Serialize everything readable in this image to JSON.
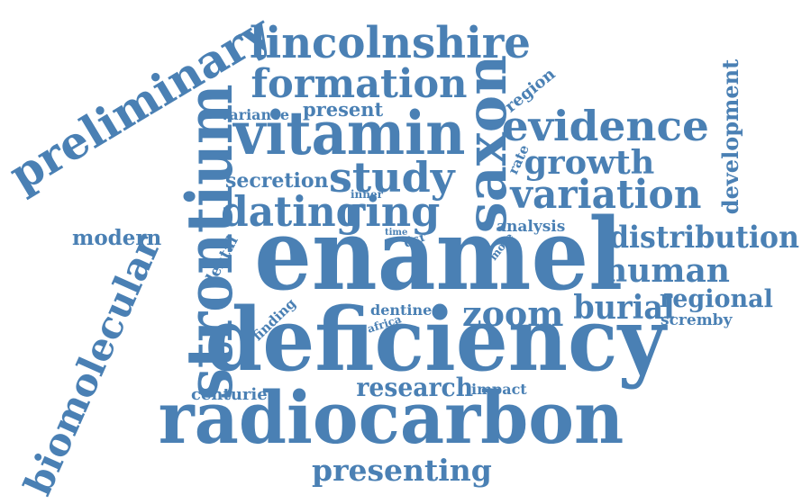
{
  "word_cloud": {
    "color": "#4a80b4",
    "words": [
      {
        "id": "enamel",
        "text": "enamel"
      },
      {
        "id": "deficiency",
        "text": "deficiency"
      },
      {
        "id": "radiocarbon",
        "text": "radiocarbon"
      },
      {
        "id": "strontium",
        "text": "strontium"
      },
      {
        "id": "vitamin",
        "text": "vitamin"
      },
      {
        "id": "saxon",
        "text": "saxon"
      },
      {
        "id": "lincolnshire",
        "text": "lincolnshire"
      },
      {
        "id": "preliminary",
        "text": "preliminary"
      },
      {
        "id": "biomolecular",
        "text": "biomolecular"
      },
      {
        "id": "formation",
        "text": "formation"
      },
      {
        "id": "evidence",
        "text": "evidence"
      },
      {
        "id": "variation",
        "text": "variation"
      },
      {
        "id": "study",
        "text": "study"
      },
      {
        "id": "dating",
        "text": "dating"
      },
      {
        "id": "ring",
        "text": "ring"
      },
      {
        "id": "distribution",
        "text": "distribution"
      },
      {
        "id": "human",
        "text": "human"
      },
      {
        "id": "growth",
        "text": "growth"
      },
      {
        "id": "zoom",
        "text": "zoom"
      },
      {
        "id": "burial",
        "text": "burial"
      },
      {
        "id": "regional",
        "text": "regional"
      },
      {
        "id": "development",
        "text": "development"
      },
      {
        "id": "presenting",
        "text": "presenting"
      },
      {
        "id": "research",
        "text": "research"
      },
      {
        "id": "present",
        "text": "present"
      },
      {
        "id": "variance",
        "text": "variance"
      },
      {
        "id": "region",
        "text": "region"
      },
      {
        "id": "rate",
        "text": "rate"
      },
      {
        "id": "secretion",
        "text": "secretion"
      },
      {
        "id": "inner",
        "text": "inner"
      },
      {
        "id": "modern",
        "text": "modern"
      },
      {
        "id": "analysis",
        "text": "analysis"
      },
      {
        "id": "time",
        "text": "time"
      },
      {
        "id": "dsr",
        "text": "dsr"
      },
      {
        "id": "more",
        "text": "more"
      },
      {
        "id": "dental",
        "text": "dental"
      },
      {
        "id": "dentine",
        "text": "dentine"
      },
      {
        "id": "africa",
        "text": "africa"
      },
      {
        "id": "finding",
        "text": "finding"
      },
      {
        "id": "scremby",
        "text": "scremby"
      },
      {
        "id": "centuries",
        "text": "centuries"
      },
      {
        "id": "impact",
        "text": "impact"
      }
    ]
  }
}
